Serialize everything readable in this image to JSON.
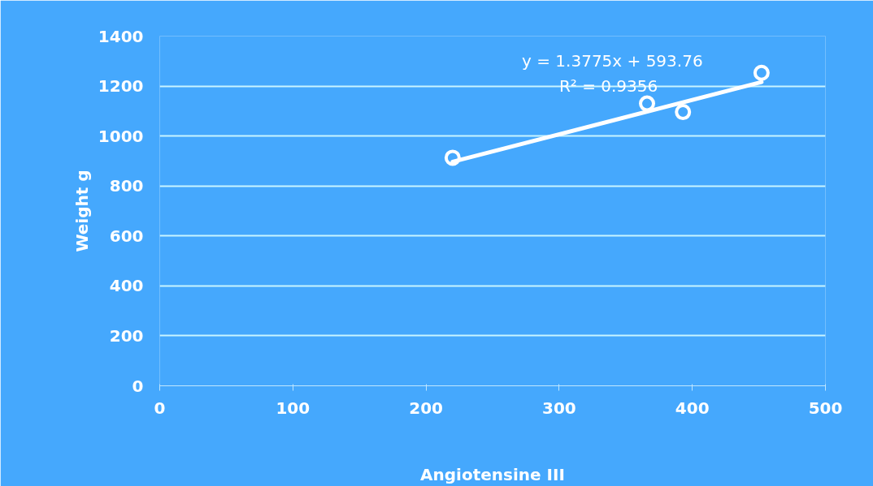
{
  "chart_data": {
    "type": "scatter",
    "xlabel": "Angiotensine III",
    "ylabel": "Weight g",
    "x": [
      220,
      366,
      393,
      452
    ],
    "series": [
      {
        "color": "#ffffff",
        "marker": "circle",
        "values": [
          913,
          1130,
          1096,
          1253
        ]
      },
      {
        "type": "line",
        "color": "#ffffff",
        "x": [
          220,
          452
        ],
        "values": [
          897,
          1216
        ]
      }
    ],
    "annotations": [
      "y = 1.3775x + 593.76",
      "R² = 0.9356"
    ],
    "xlim": [
      0,
      500
    ],
    "xticks": [
      0,
      100,
      200,
      300,
      400,
      500
    ],
    "ylim": [
      0,
      1400
    ],
    "yticks": [
      0,
      200,
      400,
      600,
      800,
      1000,
      1200,
      1400
    ],
    "grid": "y"
  }
}
